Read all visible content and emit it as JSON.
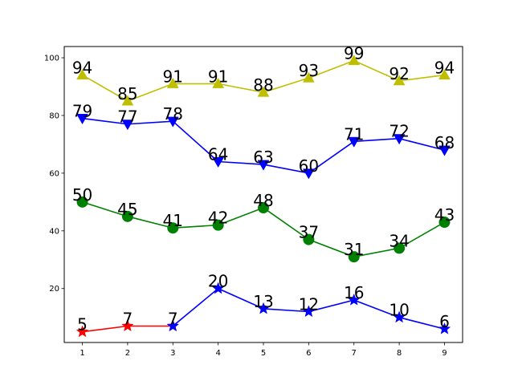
{
  "chart_data": {
    "type": "line",
    "title": "",
    "xlabel": "",
    "ylabel": "",
    "x": [
      1,
      2,
      3,
      4,
      5,
      6,
      7,
      8,
      9
    ],
    "xlim": [
      0.6,
      9.4
    ],
    "ylim": [
      1.3,
      103.9
    ],
    "xticks": [
      1,
      2,
      3,
      4,
      5,
      6,
      7,
      8,
      9
    ],
    "yticks": [
      20,
      40,
      60,
      80,
      100
    ],
    "grid": false,
    "legend": "none",
    "series": [
      {
        "marker": "triangle-up",
        "color": "#bfbf00",
        "x": [
          1,
          2,
          3,
          4,
          5,
          6,
          7,
          8,
          9
        ],
        "values": [
          94,
          85,
          91,
          91,
          88,
          93,
          99,
          92,
          94
        ]
      },
      {
        "marker": "triangle-down",
        "color": "#0000ff",
        "x": [
          1,
          2,
          3,
          4,
          5,
          6,
          7,
          8,
          9
        ],
        "values": [
          79,
          77,
          78,
          64,
          63,
          60,
          71,
          72,
          68
        ]
      },
      {
        "marker": "circle",
        "color": "#008000",
        "x": [
          1,
          2,
          3,
          4,
          5,
          6,
          7,
          8,
          9
        ],
        "values": [
          50,
          45,
          41,
          42,
          48,
          37,
          31,
          34,
          43
        ]
      },
      {
        "marker": "star",
        "color": "#ff0000",
        "x": [
          1,
          2,
          3
        ],
        "values": [
          5,
          7,
          7
        ]
      },
      {
        "marker": "star",
        "color": "#0000ff",
        "x": [
          3,
          4,
          5,
          6,
          7,
          8,
          9
        ],
        "values": [
          7,
          20,
          13,
          12,
          16,
          10,
          6
        ]
      }
    ],
    "data_labels": [
      {
        "x": 1,
        "y": 94,
        "text": "94"
      },
      {
        "x": 2,
        "y": 85,
        "text": "85"
      },
      {
        "x": 3,
        "y": 91,
        "text": "91"
      },
      {
        "x": 4,
        "y": 91,
        "text": "91"
      },
      {
        "x": 5,
        "y": 88,
        "text": "88"
      },
      {
        "x": 6,
        "y": 93,
        "text": "93"
      },
      {
        "x": 7,
        "y": 99,
        "text": "99"
      },
      {
        "x": 8,
        "y": 92,
        "text": "92"
      },
      {
        "x": 9,
        "y": 94,
        "text": "94"
      },
      {
        "x": 1,
        "y": 79,
        "text": "79"
      },
      {
        "x": 2,
        "y": 77,
        "text": "77"
      },
      {
        "x": 3,
        "y": 78,
        "text": "78"
      },
      {
        "x": 4,
        "y": 64,
        "text": "64"
      },
      {
        "x": 5,
        "y": 63,
        "text": "63"
      },
      {
        "x": 6,
        "y": 60,
        "text": "60"
      },
      {
        "x": 7,
        "y": 71,
        "text": "71"
      },
      {
        "x": 8,
        "y": 72,
        "text": "72"
      },
      {
        "x": 9,
        "y": 68,
        "text": "68"
      },
      {
        "x": 1,
        "y": 50,
        "text": "50"
      },
      {
        "x": 2,
        "y": 45,
        "text": "45"
      },
      {
        "x": 3,
        "y": 41,
        "text": "41"
      },
      {
        "x": 4,
        "y": 42,
        "text": "42"
      },
      {
        "x": 5,
        "y": 48,
        "text": "48"
      },
      {
        "x": 6,
        "y": 37,
        "text": "37"
      },
      {
        "x": 7,
        "y": 31,
        "text": "31"
      },
      {
        "x": 8,
        "y": 34,
        "text": "34"
      },
      {
        "x": 9,
        "y": 43,
        "text": "43"
      },
      {
        "x": 1,
        "y": 5,
        "text": "5"
      },
      {
        "x": 2,
        "y": 7,
        "text": "7"
      },
      {
        "x": 3,
        "y": 7,
        "text": "7"
      },
      {
        "x": 4,
        "y": 20,
        "text": "20"
      },
      {
        "x": 5,
        "y": 13,
        "text": "13"
      },
      {
        "x": 6,
        "y": 12,
        "text": "12"
      },
      {
        "x": 7,
        "y": 16,
        "text": "16"
      },
      {
        "x": 8,
        "y": 10,
        "text": "10"
      },
      {
        "x": 9,
        "y": 6,
        "text": "6"
      }
    ]
  }
}
